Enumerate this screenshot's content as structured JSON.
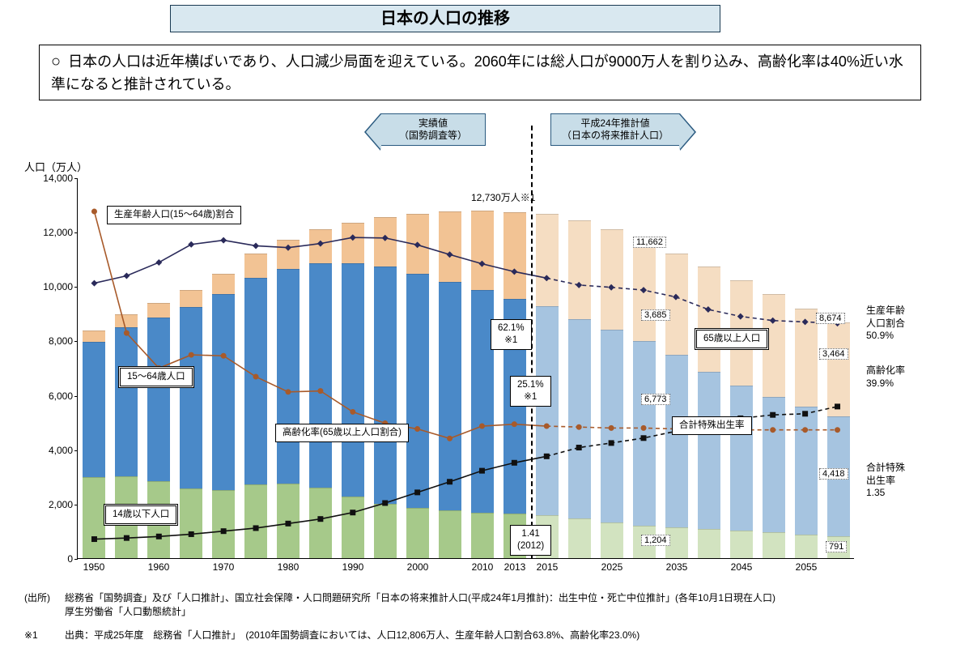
{
  "title": "日本の人口の推移",
  "summary": "日本の人口は近年横ばいであり、人口減少局面を迎えている。2060年には総人口が9000万人を割り込み、高齢化率は40%近い水準になると推計されている。",
  "arrows": {
    "left_label_line1": "実績値",
    "left_label_line2": "（国勢調査等）",
    "right_label_line1": "平成24年推計値",
    "right_label_line2": "（日本の将来推計人口）"
  },
  "y_axis_title": "人口（万人）",
  "chart": {
    "type": "stacked-bar-with-lines",
    "background_color": "#ffffff",
    "ylim": [
      0,
      14000
    ],
    "ytick_step": 2000,
    "yticks": [
      0,
      2000,
      4000,
      6000,
      8000,
      10000,
      12000,
      14000
    ],
    "ytick_labels": [
      "0",
      "2,000",
      "4,000",
      "6,000",
      "8,000",
      "10,000",
      "12,000",
      "14,000"
    ],
    "years": [
      1950,
      1955,
      1960,
      1965,
      1970,
      1975,
      1980,
      1985,
      1990,
      1995,
      2000,
      2005,
      2010,
      2013,
      2015,
      2020,
      2025,
      2030,
      2035,
      2040,
      2045,
      2050,
      2055,
      2060
    ],
    "xtick_labels": [
      "1950",
      "",
      "1960",
      "",
      "1970",
      "",
      "1980",
      "",
      "1990",
      "",
      "2000",
      "",
      "2010",
      "2013",
      "2015",
      "",
      "2025",
      "",
      "2035",
      "",
      "2045",
      "",
      "2055",
      ""
    ],
    "divider_after_index": 13,
    "segments": {
      "under14": {
        "label": "14歳以下人口",
        "color_actual": "#a6c98a",
        "color_proj": "#d2e3c0"
      },
      "age15_64": {
        "label": "15～64歳人口",
        "color_actual": "#4a89c8",
        "color_proj": "#a6c4e0"
      },
      "over65": {
        "label": "65歳以上人口",
        "color_actual": "#f2c394",
        "color_proj": "#f5ddc2"
      }
    },
    "stack_data": {
      "under14": [
        2980,
        3010,
        2840,
        2550,
        2510,
        2720,
        2750,
        2600,
        2250,
        2000,
        1850,
        1760,
        1680,
        1640,
        1580,
        1460,
        1320,
        1200,
        1130,
        1070,
        1010,
        940,
        860,
        790
      ],
      "age15_64": [
        4970,
        5470,
        6000,
        6690,
        7210,
        7580,
        7880,
        8250,
        8590,
        8720,
        8620,
        8410,
        8170,
        7900,
        7680,
        7340,
        7080,
        6770,
        6340,
        5790,
        5350,
        5000,
        4700,
        4420
      ],
      "over65": [
        420,
        480,
        540,
        620,
        740,
        890,
        1070,
        1250,
        1490,
        1830,
        2200,
        2570,
        2940,
        3190,
        3390,
        3610,
        3680,
        3690,
        3740,
        3870,
        3860,
        3770,
        3630,
        3460
      ]
    },
    "lines": {
      "working_ratio": {
        "label": "生産年齢人口(15～64歳)割合",
        "color": "#2a2a5a",
        "width": 1.6,
        "marker": "diamond",
        "scale_max": 100,
        "map_to_y_max": 17000,
        "values": [
          59.6,
          61.2,
          64.1,
          68.0,
          68.9,
          67.7,
          67.3,
          68.2,
          69.5,
          69.4,
          67.9,
          65.8,
          63.8,
          62.1,
          60.7,
          59.2,
          58.7,
          58.1,
          56.6,
          53.9,
          52.4,
          51.5,
          51.2,
          50.9
        ]
      },
      "aging_ratio": {
        "label": "高齢化率(65歳以上人口割合)",
        "color": "#101010",
        "width": 1.6,
        "marker": "square",
        "values": [
          5.0,
          5.3,
          5.7,
          6.3,
          7.1,
          7.9,
          9.1,
          10.3,
          12.0,
          14.5,
          17.3,
          20.1,
          23.0,
          25.1,
          26.8,
          29.1,
          30.3,
          31.6,
          33.4,
          36.1,
          36.8,
          37.7,
          38.0,
          39.9
        ]
      },
      "tfr": {
        "label": "合計特殊出生率",
        "color": "#a85a2a",
        "width": 1.6,
        "marker": "circle",
        "scale_max": 5.0,
        "map_to_y_max": 17500,
        "values": [
          3.65,
          2.37,
          2.0,
          2.14,
          2.13,
          1.91,
          1.75,
          1.76,
          1.54,
          1.42,
          1.36,
          1.26,
          1.39,
          1.41,
          1.39,
          1.38,
          1.37,
          1.37,
          1.36,
          1.36,
          1.35,
          1.35,
          1.35,
          1.35
        ]
      }
    }
  },
  "callouts": {
    "working_line": "生産年齢人口(15～64歳)割合",
    "age15_64": "15～64歳人口",
    "under14": "14歳以下人口",
    "aging_line": "高齢化率(65歳以上人口割合)",
    "over65": "65歳以上人口",
    "tfr_line": "合計特殊出生率",
    "peak": "12,730万人※1",
    "pct62": "62.1%\n※1",
    "pct25": "25.1%\n※1",
    "tfr2012": "1.41\n(2012)"
  },
  "data_labels": {
    "v11662": "11,662",
    "v3685": "3,685",
    "v6773": "6,773",
    "v1204": "1,204",
    "v8674": "8,674",
    "v3464": "3,464",
    "v4418": "4,418",
    "v791": "791"
  },
  "right_labels": {
    "working": "生産年齢\n人口割合\n50.9%",
    "aging": "高齢化率\n39.9%",
    "tfr": "合計特殊\n出生率\n1.35"
  },
  "footnotes": {
    "source_label": "(出所)",
    "source_text": "総務省「国勢調査」及び「人口推計」、国立社会保障・人口問題研究所「日本の将来推計人口(平成24年1月推計)：出生中位・死亡中位推計」(各年10月1日現在人口)\n厚生労働省「人口動態統計」",
    "note1_label": "※1",
    "note1_text": "出典：平成25年度　総務省「人口推計」　(2010年国勢調査においては、人口12,806万人、生産年齢人口割合63.8%、高齢化率23.0%)"
  }
}
